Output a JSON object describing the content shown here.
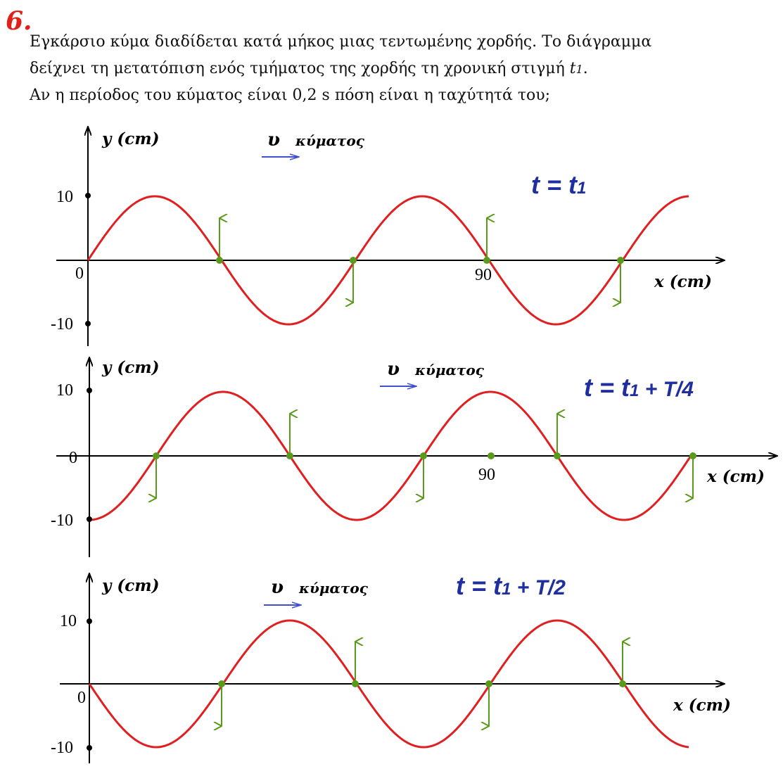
{
  "problem": {
    "number": "6.",
    "lines": [
      "Εγκάρσιο κύμα διαδίδεται κατά μήκος μιας τεντωμένης χορδής. Το διάγραμμα",
      {
        "text": "δείχνει τη μετατόπιση ενός τμήματος της χορδής τη χρονική στιγμή ",
        "var": "t",
        "sub": "1",
        "end": "."
      },
      "Αν η περίοδος του κύματος είναι 0,2 s  πόση είναι η ταχύτητά του;"
    ]
  },
  "panels": [
    {
      "y_label": "y (cm)",
      "x_label": "x (cm)",
      "velocity_symbol": "υ",
      "velocity_label": "κύματος",
      "time": {
        "main": "t = t",
        "sub": "1"
      },
      "y_ticks": [
        "10",
        "0",
        "-10"
      ],
      "x_tick": "90"
    },
    {
      "y_label": "y (cm)",
      "x_label": "x (cm)",
      "velocity_symbol": "υ",
      "velocity_label": "κύματος",
      "time": {
        "main": "t = t",
        "sub": "1",
        "suffix": " + T/4"
      },
      "y_ticks": [
        "10",
        "0",
        "-10"
      ],
      "x_tick": "90"
    },
    {
      "y_label": "y (cm)",
      "x_label": "x (cm)",
      "velocity_symbol": "υ",
      "velocity_label": "κύματος",
      "time": {
        "main": "t = t",
        "sub": "1",
        "suffix": " + T/2"
      },
      "y_ticks": [
        "10",
        "0",
        "-10"
      ]
    }
  ]
}
